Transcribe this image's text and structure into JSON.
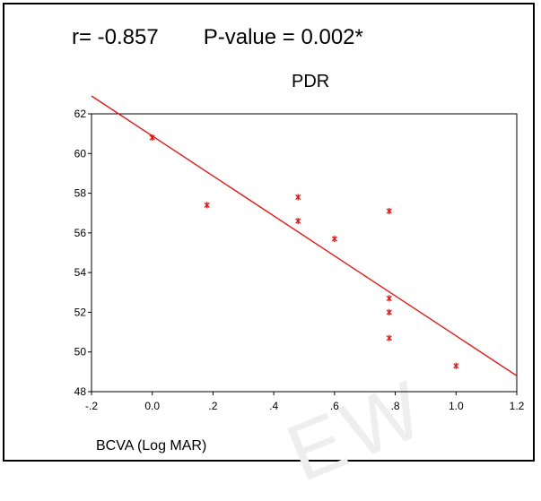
{
  "stats": {
    "r_text": "r= -0.857",
    "p_text": "P-value = 0.002*"
  },
  "chart_data": {
    "type": "scatter",
    "title": "PDR",
    "xlabel": "BCVA (Log MAR)",
    "ylabel": "",
    "xlim": [
      -0.2,
      1.2
    ],
    "ylim": [
      48,
      62
    ],
    "xticks": [
      -0.2,
      0.0,
      0.2,
      0.4,
      0.6,
      0.8,
      1.0,
      1.2
    ],
    "xtick_labels": [
      "-.2",
      "0.0",
      ".2",
      ".4",
      ".6",
      ".8",
      "1.0",
      "1.2"
    ],
    "yticks": [
      48,
      50,
      52,
      54,
      56,
      58,
      60,
      62
    ],
    "ytick_labels": [
      "48",
      "50",
      "52",
      "54",
      "56",
      "58",
      "60",
      "62"
    ],
    "points": [
      {
        "x": 0.0,
        "y": 60.8
      },
      {
        "x": 0.18,
        "y": 57.4
      },
      {
        "x": 0.48,
        "y": 57.8
      },
      {
        "x": 0.48,
        "y": 56.6
      },
      {
        "x": 0.6,
        "y": 55.7
      },
      {
        "x": 0.78,
        "y": 57.1
      },
      {
        "x": 0.78,
        "y": 52.7
      },
      {
        "x": 0.78,
        "y": 52.0
      },
      {
        "x": 0.78,
        "y": 50.7
      },
      {
        "x": 1.0,
        "y": 49.3
      }
    ],
    "fit_line": {
      "x0": -0.2,
      "y0": 62.9,
      "x1": 1.2,
      "y1": 48.8
    },
    "color": "#ff0000",
    "grid": false
  },
  "watermark": "EW"
}
